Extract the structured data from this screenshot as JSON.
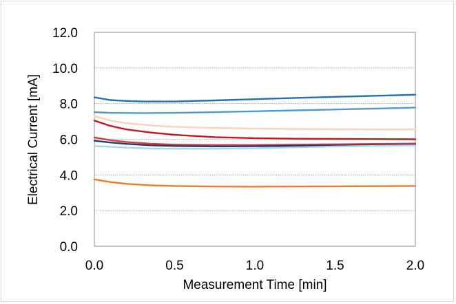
{
  "chart_data": {
    "type": "line",
    "title": "",
    "xlabel": "Measurement Time [min]",
    "ylabel": "Electrical Current [mA]",
    "xlim": [
      0.0,
      2.0
    ],
    "ylim": [
      0.0,
      12.0
    ],
    "x_ticks": [
      "0.0",
      "0.5",
      "1.0",
      "1.5",
      "2.0"
    ],
    "y_ticks": [
      "0.0",
      "2.0",
      "4.0",
      "6.0",
      "8.0",
      "10.0",
      "12.0"
    ],
    "grid": "horizontal dotted",
    "legend": "none",
    "series": [
      {
        "color": "#1f6fb8",
        "x": [
          0,
          0.1,
          0.2,
          0.3,
          0.5,
          0.75,
          1.0,
          1.25,
          1.5,
          1.75,
          2.0
        ],
        "y": [
          8.35,
          8.2,
          8.15,
          8.12,
          8.12,
          8.18,
          8.25,
          8.32,
          8.38,
          8.44,
          8.5
        ]
      },
      {
        "color": "#4a9ad4",
        "x": [
          0,
          0.1,
          0.3,
          0.5,
          0.75,
          1.0,
          1.25,
          1.5,
          1.75,
          2.0
        ],
        "y": [
          7.52,
          7.48,
          7.47,
          7.48,
          7.52,
          7.57,
          7.62,
          7.67,
          7.72,
          7.78
        ]
      },
      {
        "color": "#fcd2b8",
        "x": [
          0,
          0.1,
          0.2,
          0.35,
          0.5,
          0.75,
          1.0,
          1.25,
          1.5,
          1.75,
          2.0
        ],
        "y": [
          7.3,
          7.05,
          6.9,
          6.78,
          6.7,
          6.64,
          6.6,
          6.58,
          6.56,
          6.55,
          6.55
        ]
      },
      {
        "color": "#c8161d",
        "x": [
          0,
          0.1,
          0.2,
          0.35,
          0.5,
          0.75,
          1.0,
          1.25,
          1.5,
          1.75,
          2.0
        ],
        "y": [
          7.05,
          6.75,
          6.55,
          6.38,
          6.25,
          6.12,
          6.06,
          6.03,
          6.02,
          6.01,
          6.0
        ]
      },
      {
        "color": "#e0353b",
        "x": [
          0,
          0.1,
          0.2,
          0.35,
          0.5,
          0.75,
          1.0,
          1.25,
          1.5,
          1.75,
          2.0
        ],
        "y": [
          6.1,
          5.95,
          5.85,
          5.75,
          5.7,
          5.68,
          5.68,
          5.7,
          5.72,
          5.74,
          5.76
        ]
      },
      {
        "color": "#1a3f73",
        "x": [
          0,
          0.1,
          0.2,
          0.35,
          0.5,
          0.75,
          1.0,
          1.25,
          1.5,
          1.75,
          2.0
        ],
        "y": [
          5.92,
          5.82,
          5.74,
          5.66,
          5.62,
          5.6,
          5.61,
          5.63,
          5.65,
          5.67,
          5.7
        ]
      },
      {
        "color": "#a9d4ec",
        "x": [
          0,
          0.1,
          0.2,
          0.35,
          0.5,
          0.75,
          1.0,
          1.25,
          1.5,
          1.75,
          2.0
        ],
        "y": [
          5.62,
          5.58,
          5.53,
          5.48,
          5.47,
          5.47,
          5.5,
          5.55,
          5.6,
          5.63,
          5.66
        ]
      },
      {
        "color": "#ef7b22",
        "x": [
          0,
          0.1,
          0.2,
          0.35,
          0.5,
          0.75,
          1.0,
          1.25,
          1.5,
          1.75,
          2.0
        ],
        "y": [
          3.75,
          3.6,
          3.5,
          3.42,
          3.38,
          3.35,
          3.34,
          3.35,
          3.36,
          3.37,
          3.38
        ]
      }
    ]
  }
}
